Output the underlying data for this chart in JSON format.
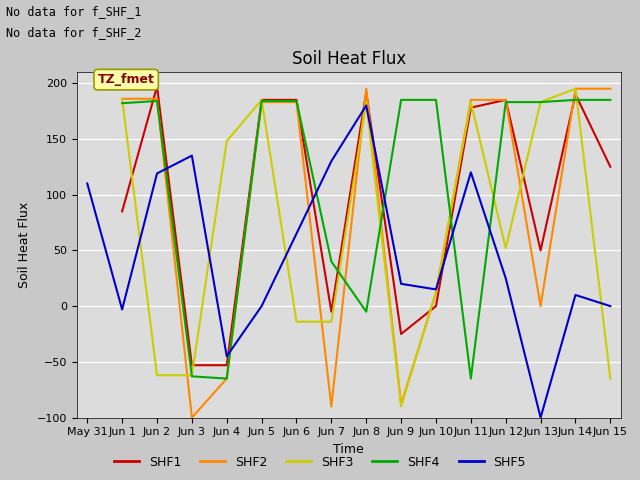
{
  "title": "Soil Heat Flux",
  "xlabel": "Time",
  "ylabel": "Soil Heat Flux",
  "text_top_left_line1": "No data for f_SHF_1",
  "text_top_left_line2": "No data for f_SHF_2",
  "annotation": "TZ_fmet",
  "ylim": [
    -100,
    210
  ],
  "fig_facecolor": "#c8c8c8",
  "plot_bg_color": "#dcdcdc",
  "series_colors": {
    "SHF1": "#cc0000",
    "SHF2": "#ff8800",
    "SHF3": "#cccc00",
    "SHF4": "#00aa00",
    "SHF5": "#0000cc"
  },
  "x_tick_labels": [
    "May 31",
    "Jun 1",
    "Jun 2",
    "Jun 3",
    "Jun 4",
    "Jun 5",
    "Jun 6",
    "Jun 7",
    "Jun 8",
    "Jun 9",
    "Jun 10",
    "Jun 11",
    "Jun 12",
    "Jun 13",
    "Jun 14",
    "Jun 15"
  ],
  "x_values": [
    0,
    1,
    2,
    3,
    4,
    5,
    6,
    7,
    8,
    9,
    10,
    11,
    12,
    13,
    14,
    15
  ],
  "SHF1": [
    null,
    85,
    197,
    -53,
    -53,
    185,
    185,
    -5,
    192,
    -25,
    0,
    178,
    185,
    50,
    190,
    125
  ],
  "SHF2": [
    null,
    186,
    186,
    -100,
    -65,
    183,
    183,
    -90,
    195,
    -88,
    12,
    185,
    185,
    0,
    195,
    195
  ],
  "SHF3": [
    null,
    186,
    -62,
    -62,
    148,
    185,
    -14,
    -14,
    183,
    -90,
    13,
    183,
    52,
    183,
    195,
    -65
  ],
  "SHF4": [
    null,
    182,
    184,
    -63,
    -65,
    184,
    184,
    40,
    -5,
    185,
    185,
    -65,
    183,
    183,
    185,
    185
  ],
  "SHF5": [
    110,
    -3,
    119,
    135,
    -45,
    0,
    65,
    130,
    180,
    20,
    15,
    120,
    25,
    -100,
    10,
    0
  ],
  "linewidth": 1.5,
  "legend_fontsize": 9,
  "axis_label_fontsize": 9,
  "tick_fontsize": 8,
  "title_fontsize": 12
}
